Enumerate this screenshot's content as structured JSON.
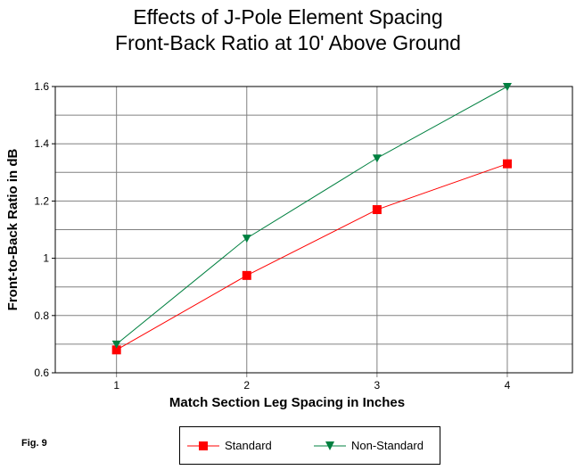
{
  "chart_data": {
    "type": "line",
    "title": [
      "Effects of J-Pole Element Spacing",
      "Front-Back Ratio at 10' Above Ground"
    ],
    "xlabel": "Match Section Leg Spacing in Inches",
    "ylabel": "Front-to-Back Ratio in dB",
    "x": [
      1,
      2,
      3,
      4
    ],
    "x_ticks": [
      "1",
      "2",
      "3",
      "4"
    ],
    "y_ticks": [
      "0.6",
      "0.8",
      "1",
      "1.2",
      "1.4",
      "1.6"
    ],
    "y_tick_values": [
      0.6,
      0.8,
      1.0,
      1.2,
      1.4,
      1.6
    ],
    "ylim": [
      0.6,
      1.6
    ],
    "xlim": [
      0.53,
      4.5
    ],
    "grid": true,
    "legend_position": "bottom",
    "series": [
      {
        "name": "Standard",
        "values": [
          0.68,
          0.94,
          1.17,
          1.33
        ],
        "color": "#ff0000",
        "marker": "square"
      },
      {
        "name": "Non-Standard",
        "values": [
          0.7,
          1.07,
          1.35,
          1.6
        ],
        "color": "#008040",
        "marker": "triangle-down"
      }
    ]
  },
  "figure_label": "Fig. 9"
}
